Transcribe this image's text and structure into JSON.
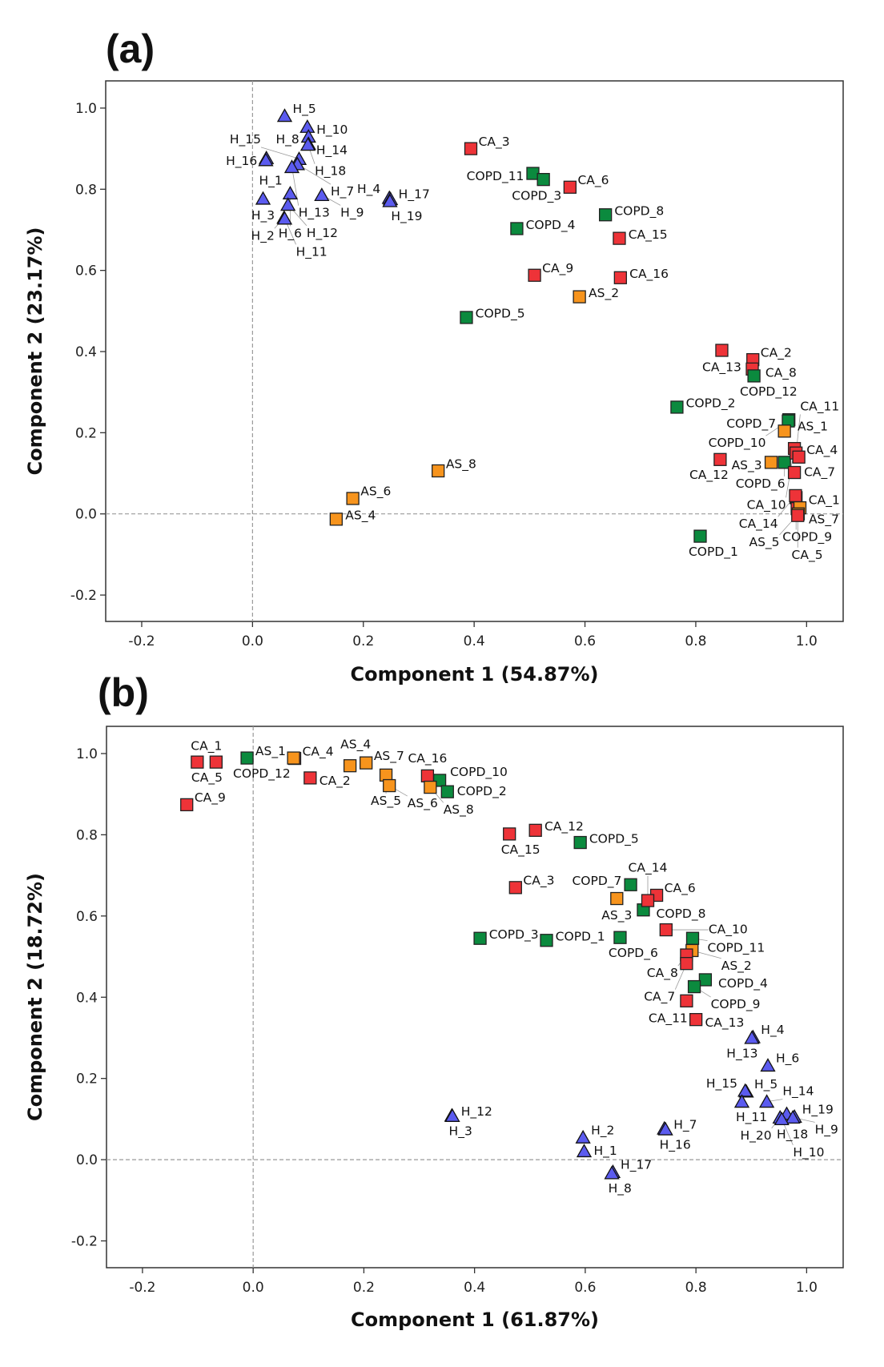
{
  "chart_data": [
    {
      "type": "scatter",
      "panel_label": "(a)",
      "xlabel": "Component 1 (54.87%)",
      "ylabel": "Component 2 (23.17%)",
      "xlim": [
        -0.265,
        1.066
      ],
      "ylim": [
        -0.265,
        1.067
      ],
      "xticks": [
        "-0.2",
        "0.0",
        "0.2",
        "0.4",
        "0.6",
        "0.8",
        "1.0"
      ],
      "yticks": [
        "-0.2",
        "0.0",
        "0.2",
        "0.4",
        "0.6",
        "0.8",
        "1.0"
      ],
      "reference_lines": {
        "x": 0,
        "y": 0
      },
      "groups": {
        "H": {
          "color": "#5b5bef",
          "marker": "triangle"
        },
        "CA": {
          "color": "#ee3338",
          "marker": "square"
        },
        "COPD": {
          "color": "#0b8a3e",
          "marker": "square"
        },
        "AS": {
          "color": "#f7941d",
          "marker": "square"
        }
      },
      "points": [
        [
          "H_5",
          "H",
          0.058,
          0.981
        ],
        [
          "H_10",
          "H",
          0.099,
          0.954
        ],
        [
          "H_8",
          "H",
          0.101,
          0.93
        ],
        [
          "H_14",
          "H",
          0.101,
          0.912
        ],
        [
          "H_18",
          "H",
          0.1,
          0.91
        ],
        [
          "H_16",
          "H",
          0.025,
          0.877
        ],
        [
          "H_1",
          "H",
          0.024,
          0.872
        ],
        [
          "H_15",
          "H",
          0.084,
          0.875
        ],
        [
          "H_7",
          "H",
          0.081,
          0.862
        ],
        [
          "H_13",
          "H",
          0.071,
          0.855
        ],
        [
          "H_3",
          "H",
          0.019,
          0.777
        ],
        [
          "H_6",
          "H",
          0.068,
          0.79
        ],
        [
          "H_12",
          "H",
          0.064,
          0.762
        ],
        [
          "H_2",
          "H",
          0.057,
          0.73
        ],
        [
          "H_11",
          "H",
          0.058,
          0.728
        ],
        [
          "H_9",
          "H",
          0.125,
          0.786
        ],
        [
          "H_17",
          "H",
          0.247,
          0.779
        ],
        [
          "H_19",
          "H",
          0.249,
          0.776
        ],
        [
          "H_4",
          "H",
          0.248,
          0.771
        ],
        [
          "CA_3",
          "CA",
          0.394,
          0.9
        ],
        [
          "COPD_11",
          "COPD",
          0.506,
          0.839
        ],
        [
          "COPD_3",
          "COPD",
          0.525,
          0.824
        ],
        [
          "CA_6",
          "CA",
          0.573,
          0.805
        ],
        [
          "COPD_8",
          "COPD",
          0.637,
          0.737
        ],
        [
          "COPD_4",
          "COPD",
          0.477,
          0.703
        ],
        [
          "CA_15",
          "CA",
          0.662,
          0.679
        ],
        [
          "CA_9",
          "CA",
          0.509,
          0.588
        ],
        [
          "CA_16",
          "CA",
          0.664,
          0.582
        ],
        [
          "AS_2",
          "AS",
          0.59,
          0.535
        ],
        [
          "COPD_5",
          "COPD",
          0.386,
          0.484
        ],
        [
          "CA_13",
          "CA",
          0.847,
          0.403
        ],
        [
          "CA_2",
          "CA",
          0.903,
          0.38
        ],
        [
          "CA_8",
          "CA",
          0.902,
          0.357
        ],
        [
          "COPD_12",
          "COPD",
          0.905,
          0.34
        ],
        [
          "COPD_2",
          "COPD",
          0.766,
          0.263
        ],
        [
          "COPD_7",
          "COPD",
          0.968,
          0.232
        ],
        [
          "COPD_10",
          "COPD",
          0.967,
          0.229
        ],
        [
          "AS_1",
          "AS",
          0.96,
          0.204
        ],
        [
          "COPD_6",
          "COPD",
          0.96,
          0.127
        ],
        [
          "CA_10",
          "CA",
          0.978,
          0.161
        ],
        [
          "CA_11",
          "CA",
          0.981,
          0.15
        ],
        [
          "CA_4",
          "CA",
          0.986,
          0.14
        ],
        [
          "CA_7",
          "CA",
          0.978,
          0.102
        ],
        [
          "CA_12",
          "CA",
          0.844,
          0.134
        ],
        [
          "AS_3",
          "AS",
          0.936,
          0.127
        ],
        [
          "COPD_9",
          "COPD",
          0.981,
          0.04
        ],
        [
          "CA_14",
          "CA",
          0.98,
          0.045
        ],
        [
          "CA_1",
          "CA",
          0.983,
          0.013
        ],
        [
          "AS_7",
          "AS",
          0.988,
          0.015
        ],
        [
          "AS_5",
          "AS",
          0.985,
          0.0
        ],
        [
          "CA_5",
          "CA",
          0.984,
          -0.004
        ],
        [
          "COPD_1",
          "COPD",
          0.808,
          -0.055
        ],
        [
          "AS_8",
          "AS",
          0.335,
          0.106
        ],
        [
          "AS_6",
          "AS",
          0.181,
          0.038
        ],
        [
          "AS_4",
          "AS",
          0.151,
          -0.013
        ]
      ]
    },
    {
      "type": "scatter",
      "panel_label": "(b)",
      "xlabel": "Component 1 (61.87%)",
      "ylabel": "Component 2 (18.72%)",
      "xlim": [
        -0.265,
        1.066
      ],
      "ylim": [
        -0.266,
        1.067
      ],
      "xticks": [
        "-0.2",
        "0.0",
        "0.2",
        "0.4",
        "0.6",
        "0.8",
        "1.0"
      ],
      "yticks": [
        "-0.2",
        "0.0",
        "0.2",
        "0.4",
        "0.6",
        "0.8",
        "1.0"
      ],
      "reference_lines": {
        "x": 0,
        "y": 0
      },
      "groups": {
        "H": {
          "color": "#5b5bef",
          "marker": "triangle"
        },
        "CA": {
          "color": "#ee3338",
          "marker": "square"
        },
        "COPD": {
          "color": "#0b8a3e",
          "marker": "square"
        },
        "AS": {
          "color": "#f7941d",
          "marker": "square"
        }
      },
      "points": [
        [
          "CA_5",
          "CA",
          -0.101,
          0.979
        ],
        [
          "CA_1",
          "CA",
          -0.067,
          0.979
        ],
        [
          "CA_9",
          "CA",
          -0.12,
          0.874
        ],
        [
          "COPD_12",
          "COPD",
          -0.011,
          0.989
        ],
        [
          "CA_4",
          "CA",
          0.075,
          0.988
        ],
        [
          "AS_1",
          "AS",
          0.073,
          0.989
        ],
        [
          "CA_2",
          "CA",
          0.103,
          0.94
        ],
        [
          "AS_4",
          "AS",
          0.175,
          0.97
        ],
        [
          "AS_7",
          "AS",
          0.204,
          0.977
        ],
        [
          "AS_5",
          "AS",
          0.24,
          0.947
        ],
        [
          "AS_6",
          "AS",
          0.246,
          0.921
        ],
        [
          "CA_16",
          "CA",
          0.315,
          0.945
        ],
        [
          "COPD_10",
          "COPD",
          0.337,
          0.934
        ],
        [
          "AS_8",
          "AS",
          0.32,
          0.917
        ],
        [
          "COPD_2",
          "COPD",
          0.351,
          0.906
        ],
        [
          "CA_15",
          "CA",
          0.463,
          0.802
        ],
        [
          "CA_12",
          "CA",
          0.51,
          0.811
        ],
        [
          "COPD_5",
          "COPD",
          0.591,
          0.781
        ],
        [
          "CA_3",
          "CA",
          0.474,
          0.67
        ],
        [
          "COPD_7",
          "COPD",
          0.682,
          0.677
        ],
        [
          "AS_3",
          "AS",
          0.657,
          0.643
        ],
        [
          "CA_6",
          "CA",
          0.729,
          0.651
        ],
        [
          "COPD_8",
          "COPD",
          0.705,
          0.615
        ],
        [
          "CA_14",
          "CA",
          0.713,
          0.638
        ],
        [
          "COPD_3",
          "COPD",
          0.41,
          0.545
        ],
        [
          "COPD_1",
          "COPD",
          0.53,
          0.54
        ],
        [
          "COPD_6",
          "COPD",
          0.663,
          0.547
        ],
        [
          "CA_10",
          "CA",
          0.746,
          0.566
        ],
        [
          "COPD_11",
          "COPD",
          0.794,
          0.545
        ],
        [
          "AS_2",
          "AS",
          0.793,
          0.515
        ],
        [
          "CA_8",
          "CA",
          0.783,
          0.504
        ],
        [
          "CA_7",
          "CA",
          0.783,
          0.483
        ],
        [
          "COPD_4",
          "COPD",
          0.817,
          0.443
        ],
        [
          "COPD_9",
          "COPD",
          0.797,
          0.426
        ],
        [
          "CA_11",
          "CA",
          0.783,
          0.391
        ],
        [
          "CA_13",
          "CA",
          0.8,
          0.345
        ],
        [
          "H_4",
          "H",
          0.903,
          0.302
        ],
        [
          "H_13",
          "H",
          0.901,
          0.3
        ],
        [
          "H_6",
          "H",
          0.93,
          0.232
        ],
        [
          "H_5",
          "H",
          0.891,
          0.168
        ],
        [
          "H_15",
          "H",
          0.889,
          0.17
        ],
        [
          "H_11",
          "H",
          0.883,
          0.143
        ],
        [
          "H_14",
          "H",
          0.928,
          0.143
        ],
        [
          "H_18",
          "H",
          0.964,
          0.113
        ],
        [
          "H_20",
          "H",
          0.952,
          0.104
        ],
        [
          "H_19",
          "H",
          0.978,
          0.106
        ],
        [
          "H_9",
          "H",
          0.975,
          0.104
        ],
        [
          "H_10",
          "H",
          0.955,
          0.1
        ],
        [
          "H_7",
          "H",
          0.743,
          0.077
        ],
        [
          "H_16",
          "H",
          0.745,
          0.075
        ],
        [
          "H_2",
          "H",
          0.596,
          0.055
        ],
        [
          "H_1",
          "H",
          0.598,
          0.021
        ],
        [
          "H_12",
          "H",
          0.359,
          0.109
        ],
        [
          "H_3",
          "H",
          0.36,
          0.108
        ],
        [
          "H_17",
          "H",
          0.65,
          -0.03
        ],
        [
          "H_8",
          "H",
          0.648,
          -0.033
        ]
      ]
    }
  ]
}
